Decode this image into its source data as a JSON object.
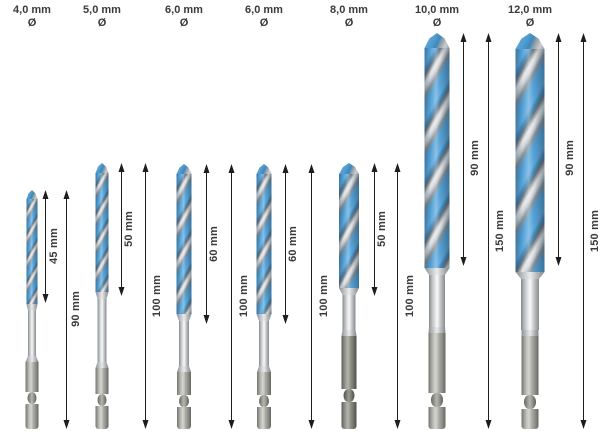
{
  "diagram": {
    "title": "drill-bit-set-dimension-diagram",
    "unit": "mm",
    "bits": [
      {
        "diameter_label": "4,0 mm",
        "diameter_symbol": "Ø",
        "diameter_mm": 4.0,
        "flute_length_label": "45 mm",
        "flute_length_mm": 45,
        "total_length_label": "90 mm",
        "total_length_mm": 90
      },
      {
        "diameter_label": "5,0 mm",
        "diameter_symbol": "Ø",
        "diameter_mm": 5.0,
        "flute_length_label": "50 mm",
        "flute_length_mm": 50,
        "total_length_label": "100 mm",
        "total_length_mm": 100
      },
      {
        "diameter_label": "6,0 mm",
        "diameter_symbol": "Ø",
        "diameter_mm": 6.0,
        "flute_length_label": "60 mm",
        "flute_length_mm": 60,
        "total_length_label": "100 mm",
        "total_length_mm": 100
      },
      {
        "diameter_label": "6,0 mm",
        "diameter_symbol": "Ø",
        "diameter_mm": 6.0,
        "flute_length_label": "60 mm",
        "flute_length_mm": 60,
        "total_length_label": "100 mm",
        "total_length_mm": 100
      },
      {
        "diameter_label": "8,0 mm",
        "diameter_symbol": "Ø",
        "diameter_mm": 8.0,
        "flute_length_label": "50 mm",
        "flute_length_mm": 50,
        "total_length_label": "100 mm",
        "total_length_mm": 100
      },
      {
        "diameter_label": "10,0 mm",
        "diameter_symbol": "Ø",
        "diameter_mm": 10.0,
        "flute_length_label": "90 mm",
        "flute_length_mm": 90,
        "total_length_label": "150 mm",
        "total_length_mm": 150
      },
      {
        "diameter_label": "12,0 mm",
        "diameter_symbol": "Ø",
        "diameter_mm": 12.0,
        "flute_length_label": "90 mm",
        "flute_length_mm": 90,
        "total_length_label": "150 mm",
        "total_length_mm": 150
      }
    ],
    "colors": {
      "flute_blue": "#4f9fd6",
      "steel_light": "#eef0f1",
      "hex_gray": "#a9aaa4",
      "text": "#3a3a3a",
      "arrow": "#1d1d1b",
      "background": "#ffffff"
    }
  }
}
